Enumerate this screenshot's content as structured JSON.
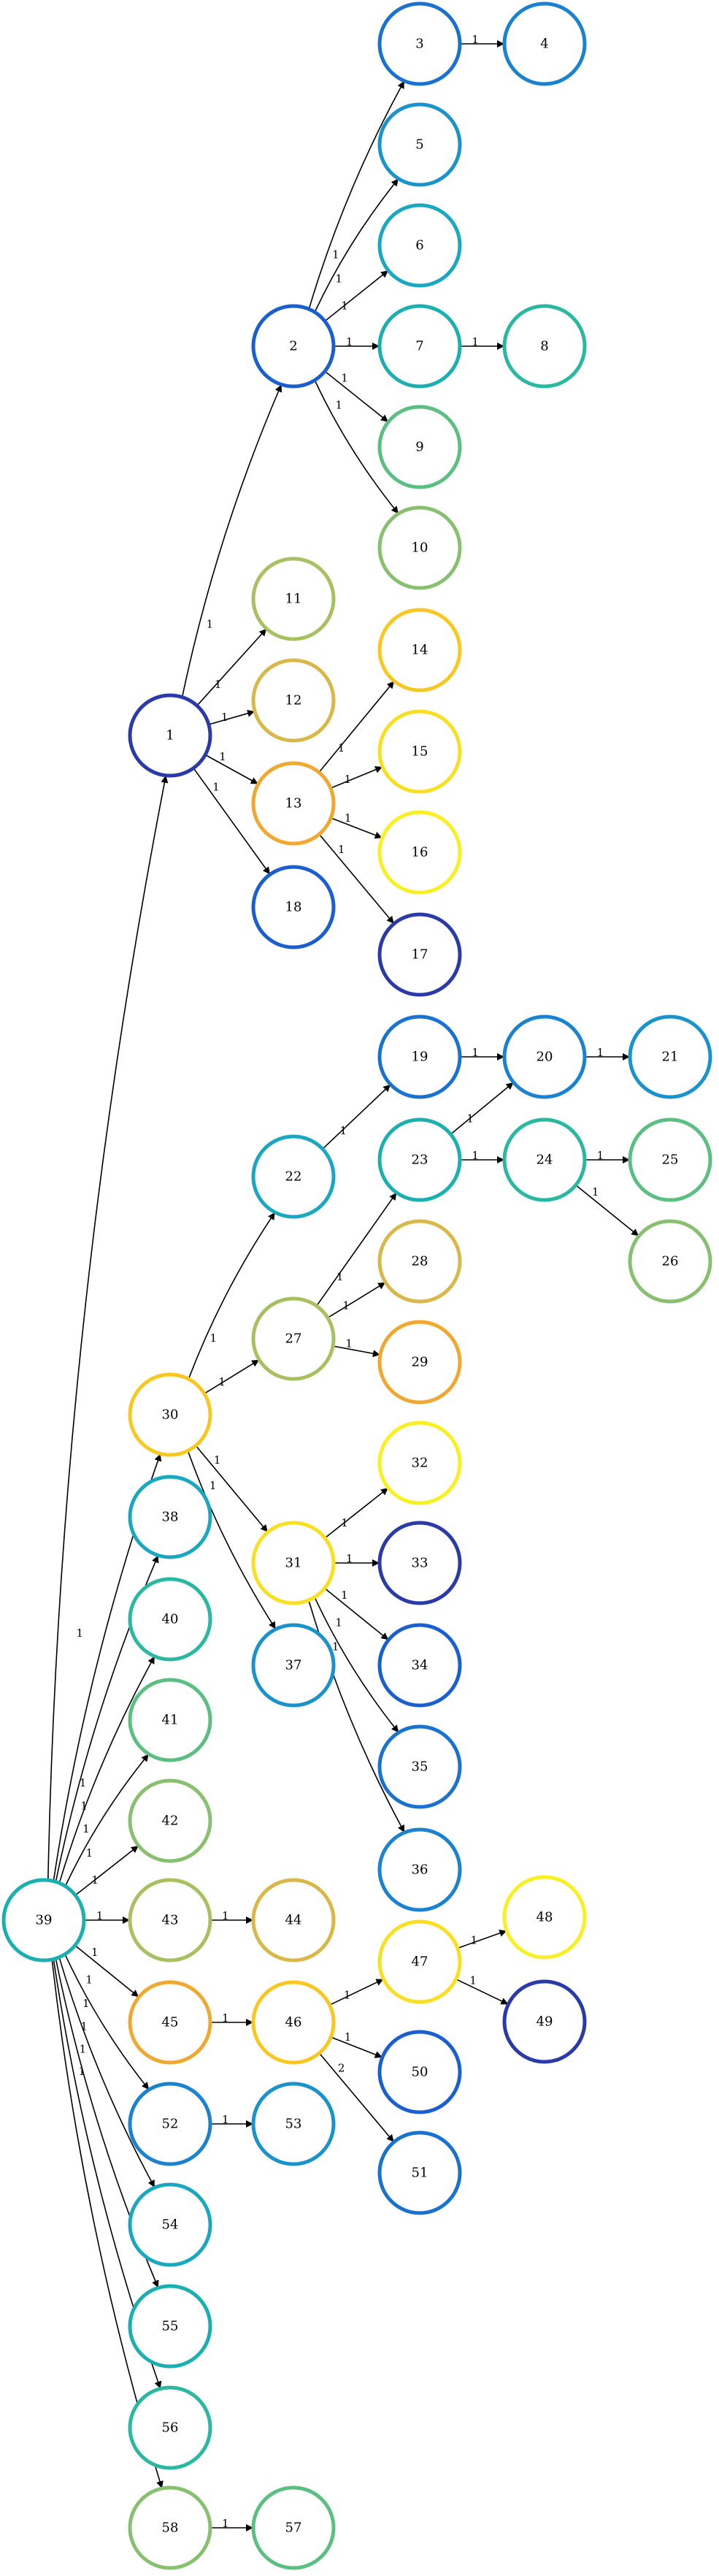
{
  "diagram": {
    "type": "directed-tree",
    "nodes": [
      {
        "id": "1",
        "color": "#2a3aa8"
      },
      {
        "id": "2",
        "color": "#1a5fd0"
      },
      {
        "id": "3",
        "color": "#1a72d0"
      },
      {
        "id": "4",
        "color": "#1a82d0"
      },
      {
        "id": "5",
        "color": "#1a92cc"
      },
      {
        "id": "6",
        "color": "#1aa8c0"
      },
      {
        "id": "7",
        "color": "#1ab0b0"
      },
      {
        "id": "8",
        "color": "#2ab8a0"
      },
      {
        "id": "9",
        "color": "#5abf80"
      },
      {
        "id": "10",
        "color": "#88c070"
      },
      {
        "id": "11",
        "color": "#a8c060"
      },
      {
        "id": "12",
        "color": "#d8b848"
      },
      {
        "id": "13",
        "color": "#f0a830"
      },
      {
        "id": "14",
        "color": "#f8c820"
      },
      {
        "id": "15",
        "color": "#f8e020"
      },
      {
        "id": "16",
        "color": "#f8f020"
      },
      {
        "id": "17",
        "color": "#2a3aa8"
      },
      {
        "id": "18",
        "color": "#1a5fd0"
      },
      {
        "id": "19",
        "color": "#1a72d0"
      },
      {
        "id": "20",
        "color": "#1a82d0"
      },
      {
        "id": "21",
        "color": "#1a92cc"
      },
      {
        "id": "22",
        "color": "#1aa8c0"
      },
      {
        "id": "23",
        "color": "#1ab0b0"
      },
      {
        "id": "24",
        "color": "#2ab8a0"
      },
      {
        "id": "25",
        "color": "#5abf80"
      },
      {
        "id": "26",
        "color": "#88c070"
      },
      {
        "id": "27",
        "color": "#a8c060"
      },
      {
        "id": "28",
        "color": "#d8b848"
      },
      {
        "id": "29",
        "color": "#f0a830"
      },
      {
        "id": "30",
        "color": "#f8c820"
      },
      {
        "id": "31",
        "color": "#f8e020"
      },
      {
        "id": "32",
        "color": "#f8f020"
      },
      {
        "id": "33",
        "color": "#2a3aa8"
      },
      {
        "id": "34",
        "color": "#1a5fd0"
      },
      {
        "id": "35",
        "color": "#1a72d0"
      },
      {
        "id": "36",
        "color": "#1a82d0"
      },
      {
        "id": "37",
        "color": "#1a92cc"
      },
      {
        "id": "38",
        "color": "#1aa8c0"
      },
      {
        "id": "39",
        "color": "#1ab0b0"
      },
      {
        "id": "40",
        "color": "#2ab8a0"
      },
      {
        "id": "41",
        "color": "#5abf80"
      },
      {
        "id": "42",
        "color": "#88c070"
      },
      {
        "id": "43",
        "color": "#a8c060"
      },
      {
        "id": "44",
        "color": "#d8b848"
      },
      {
        "id": "45",
        "color": "#f0a830"
      },
      {
        "id": "46",
        "color": "#f8c820"
      },
      {
        "id": "47",
        "color": "#f8e020"
      },
      {
        "id": "48",
        "color": "#f8f020"
      },
      {
        "id": "49",
        "color": "#2a3aa8"
      },
      {
        "id": "50",
        "color": "#1a5fd0"
      },
      {
        "id": "51",
        "color": "#1a72d0"
      },
      {
        "id": "52",
        "color": "#1a82d0"
      },
      {
        "id": "53",
        "color": "#1a92cc"
      },
      {
        "id": "54",
        "color": "#1aa8c0"
      },
      {
        "id": "55",
        "color": "#1ab0b0"
      },
      {
        "id": "56",
        "color": "#2ab8a0"
      },
      {
        "id": "57",
        "color": "#5abf80"
      },
      {
        "id": "58",
        "color": "#88c070"
      }
    ],
    "edges": [
      {
        "from": "39",
        "to": "1",
        "label": "1"
      },
      {
        "from": "1",
        "to": "2",
        "label": "1"
      },
      {
        "from": "2",
        "to": "3",
        "label": "1"
      },
      {
        "from": "3",
        "to": "4",
        "label": "1"
      },
      {
        "from": "2",
        "to": "5",
        "label": "1"
      },
      {
        "from": "2",
        "to": "6",
        "label": "1"
      },
      {
        "from": "2",
        "to": "7",
        "label": "1"
      },
      {
        "from": "7",
        "to": "8",
        "label": "1"
      },
      {
        "from": "2",
        "to": "9",
        "label": "1"
      },
      {
        "from": "2",
        "to": "10",
        "label": "1"
      },
      {
        "from": "1",
        "to": "11",
        "label": "1"
      },
      {
        "from": "1",
        "to": "12",
        "label": "1"
      },
      {
        "from": "1",
        "to": "13",
        "label": "1"
      },
      {
        "from": "13",
        "to": "14",
        "label": "1"
      },
      {
        "from": "13",
        "to": "15",
        "label": "1"
      },
      {
        "from": "13",
        "to": "16",
        "label": "1"
      },
      {
        "from": "13",
        "to": "17",
        "label": "1"
      },
      {
        "from": "1",
        "to": "18",
        "label": "1"
      },
      {
        "from": "39",
        "to": "30",
        "label": "1"
      },
      {
        "from": "30",
        "to": "22",
        "label": "1"
      },
      {
        "from": "22",
        "to": "19",
        "label": "1"
      },
      {
        "from": "19",
        "to": "20",
        "label": "1"
      },
      {
        "from": "20",
        "to": "21",
        "label": "1"
      },
      {
        "from": "30",
        "to": "27",
        "label": "1"
      },
      {
        "from": "27",
        "to": "23",
        "label": "1"
      },
      {
        "from": "23",
        "to": "20",
        "label": "1"
      },
      {
        "from": "23",
        "to": "24",
        "label": "1"
      },
      {
        "from": "24",
        "to": "25",
        "label": "1"
      },
      {
        "from": "24",
        "to": "26",
        "label": "1"
      },
      {
        "from": "27",
        "to": "28",
        "label": "1"
      },
      {
        "from": "27",
        "to": "29",
        "label": "1"
      },
      {
        "from": "30",
        "to": "31",
        "label": "1"
      },
      {
        "from": "31",
        "to": "32",
        "label": "1"
      },
      {
        "from": "31",
        "to": "33",
        "label": "1"
      },
      {
        "from": "31",
        "to": "34",
        "label": "1"
      },
      {
        "from": "31",
        "to": "35",
        "label": "1"
      },
      {
        "from": "31",
        "to": "36",
        "label": "1"
      },
      {
        "from": "30",
        "to": "37",
        "label": "1"
      },
      {
        "from": "39",
        "to": "38",
        "label": "1"
      },
      {
        "from": "39",
        "to": "40",
        "label": "1"
      },
      {
        "from": "39",
        "to": "41",
        "label": "1"
      },
      {
        "from": "39",
        "to": "42",
        "label": "1"
      },
      {
        "from": "39",
        "to": "43",
        "label": "1"
      },
      {
        "from": "43",
        "to": "44",
        "label": "1"
      },
      {
        "from": "39",
        "to": "45",
        "label": "1"
      },
      {
        "from": "45",
        "to": "46",
        "label": "1"
      },
      {
        "from": "46",
        "to": "47",
        "label": "1"
      },
      {
        "from": "47",
        "to": "48",
        "label": "1"
      },
      {
        "from": "47",
        "to": "49",
        "label": "1"
      },
      {
        "from": "46",
        "to": "50",
        "label": "1"
      },
      {
        "from": "46",
        "to": "51",
        "label": "2"
      },
      {
        "from": "39",
        "to": "52",
        "label": "1"
      },
      {
        "from": "52",
        "to": "53",
        "label": "1"
      },
      {
        "from": "39",
        "to": "54",
        "label": "1"
      },
      {
        "from": "39",
        "to": "55",
        "label": "1"
      },
      {
        "from": "39",
        "to": "56",
        "label": "1"
      },
      {
        "from": "39",
        "to": "58",
        "label": "1"
      },
      {
        "from": "58",
        "to": "57",
        "label": "1"
      }
    ]
  }
}
